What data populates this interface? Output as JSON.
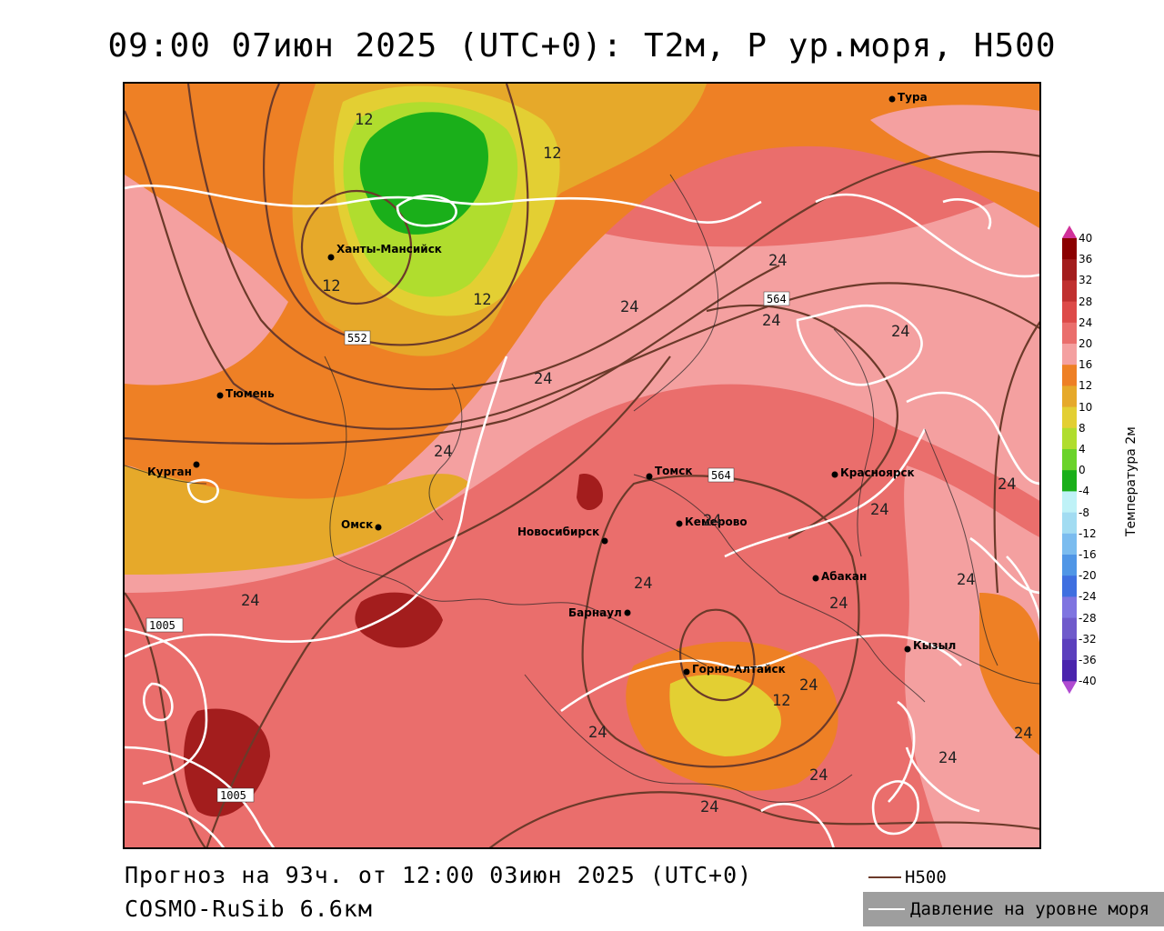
{
  "header": {
    "title": "09:00 07июн 2025 (UTC+0): T2м, P ур.моря, H500"
  },
  "footer": {
    "forecast": "Прогноз на 93ч. от 12:00 03июн 2025 (UTC+0)",
    "model": "COSMO-RuSib 6.6км"
  },
  "legend": {
    "h500_label": "H500",
    "slp_label": "Давление на уровне моря",
    "h500_color": "#6b3a2a",
    "slp_color": "#ffffff"
  },
  "colorbar": {
    "title": "Температура 2м",
    "labels": [
      "40",
      "36",
      "32",
      "28",
      "24",
      "20",
      "16",
      "12",
      "10",
      "8",
      "4",
      "0",
      "-4",
      "-8",
      "-12",
      "-16",
      "-20",
      "-24",
      "-28",
      "-32",
      "-36",
      "-40"
    ],
    "colors": [
      "#8b0000",
      "#a31d1d",
      "#c0302f",
      "#dd4a48",
      "#ea6e6c",
      "#f4a0a0",
      "#ee8025",
      "#e6a92a",
      "#e3cf33",
      "#b0dd2e",
      "#6ad32a",
      "#1aaf1a",
      "#bff2f7",
      "#a2dcf2",
      "#7bbcef",
      "#5096e6",
      "#3f6fe0",
      "#7f74e0",
      "#6f5acb",
      "#5b3fbd",
      "#4a24ad",
      "#3c0fa0"
    ],
    "top_arrow_color": "#d1319a",
    "bottom_arrow_color": "#b04bd1"
  },
  "cities": [
    {
      "name": "Тура"
    },
    {
      "name": "Ханты-Мансийск"
    },
    {
      "name": "Тюмень"
    },
    {
      "name": "Курган"
    },
    {
      "name": "Омск"
    },
    {
      "name": "Томск"
    },
    {
      "name": "Красноярск"
    },
    {
      "name": "Новосибирск"
    },
    {
      "name": "Кемерово"
    },
    {
      "name": "Абакан"
    },
    {
      "name": "Барнаул"
    },
    {
      "name": "Горно-Алтайск"
    },
    {
      "name": "Кызыл"
    }
  ],
  "contour_labels": {
    "h500": [
      "552",
      "564",
      "564"
    ],
    "slp": [
      "1005",
      "1005"
    ],
    "temp": [
      "12",
      "12",
      "12",
      "12",
      "12",
      "24",
      "24",
      "24",
      "24",
      "24",
      "24",
      "24",
      "24",
      "24",
      "24",
      "24",
      "24",
      "24",
      "24",
      "24",
      "24",
      "24",
      "24",
      "24"
    ]
  }
}
